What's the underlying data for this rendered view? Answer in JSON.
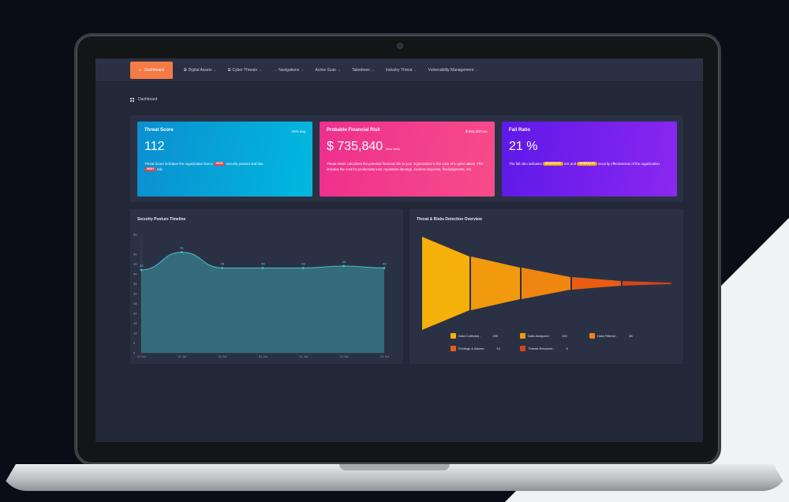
{
  "colors": {
    "accent": "#f47b45",
    "card_blue": "#0b8fd0",
    "card_pink": "#ee2f8e",
    "card_purple": "#6a1ee8",
    "pill_red": "#e5474b",
    "pill_orange": "#f2a41d",
    "line": "#3fb5c4"
  },
  "nav": {
    "home_label": "Dashboard",
    "home_icon": "home-icon",
    "items": [
      {
        "label": "Digital Assets",
        "icon": "copy-icon"
      },
      {
        "label": "Cyber Threats",
        "icon": "copy-icon"
      },
      {
        "label": "Navigations",
        "icon": "arrow-right-icon"
      },
      {
        "label": "Active Scan",
        "icon": ""
      },
      {
        "label": "Takedown",
        "icon": ""
      },
      {
        "label": "Industry Threat",
        "icon": ""
      },
      {
        "label": "Vulnerability Management",
        "icon": ""
      }
    ]
  },
  "breadcrumb": {
    "label": "Dashboard",
    "icon": "grid-icon"
  },
  "cards": {
    "threat_score": {
      "title": "Threat Score",
      "meta": "34% avg",
      "value": "112",
      "desc_pre": "Threat Score indicates the organization has a",
      "pill1": "HIGH",
      "desc_mid": "security posture and has",
      "pill2": "HIGH",
      "desc_post": "risk."
    },
    "financial_risk": {
      "title": "Probable Financial Risk",
      "meta": "$ 864,000",
      "meta_unit": "Max",
      "value": "$ 735,840",
      "unit": "Most Likely",
      "desc": "Threat Meter calculates the potential financial risk to your organization in the case of a cyber attack. This includes the cost for productivity loss, reputation damage, incident response, fine/judgments, etc."
    },
    "fail_ratio": {
      "title": "Fail Ratio",
      "value": "21 %",
      "desc_pre": "The fail ratio indicates",
      "pill1": "MODERATE",
      "desc_mid": "risk and",
      "pill2": "MODERATE",
      "desc_post": "security effectiveness of the organization."
    }
  },
  "panels": {
    "timeline_title": "Security Posture Timeline",
    "funnel_title": "Threat & Risks Detection Overview"
  },
  "chart_data": [
    {
      "type": "area",
      "title": "Security Posture Timeline",
      "x": [
        "21 Jul",
        "21 Jul",
        "21 Jul",
        "21 Jul",
        "21 Jul",
        "21 Jul",
        "21 Jul"
      ],
      "values": [
        42,
        51,
        43,
        43,
        43,
        44,
        43
      ],
      "ylim": [
        0,
        60
      ],
      "yticks": [
        "0",
        "5",
        "10",
        "15",
        "20",
        "25",
        "30",
        "35",
        "40",
        "45",
        "50",
        "60"
      ],
      "grid": false
    },
    {
      "type": "funnel",
      "title": "Threat & Risks Detection Overview",
      "categories": [
        "Data Collected :",
        "Data Analyzed :",
        "Data Filtered :",
        "Findings & Alarms:",
        "Threats Resolved :"
      ],
      "values": [
        200,
        100,
        38,
        10,
        0
      ],
      "colors": [
        "#f6b10a",
        "#f29a0e",
        "#ee8610",
        "#e85d12",
        "#d7441a"
      ],
      "legend_position": "bottom"
    }
  ]
}
